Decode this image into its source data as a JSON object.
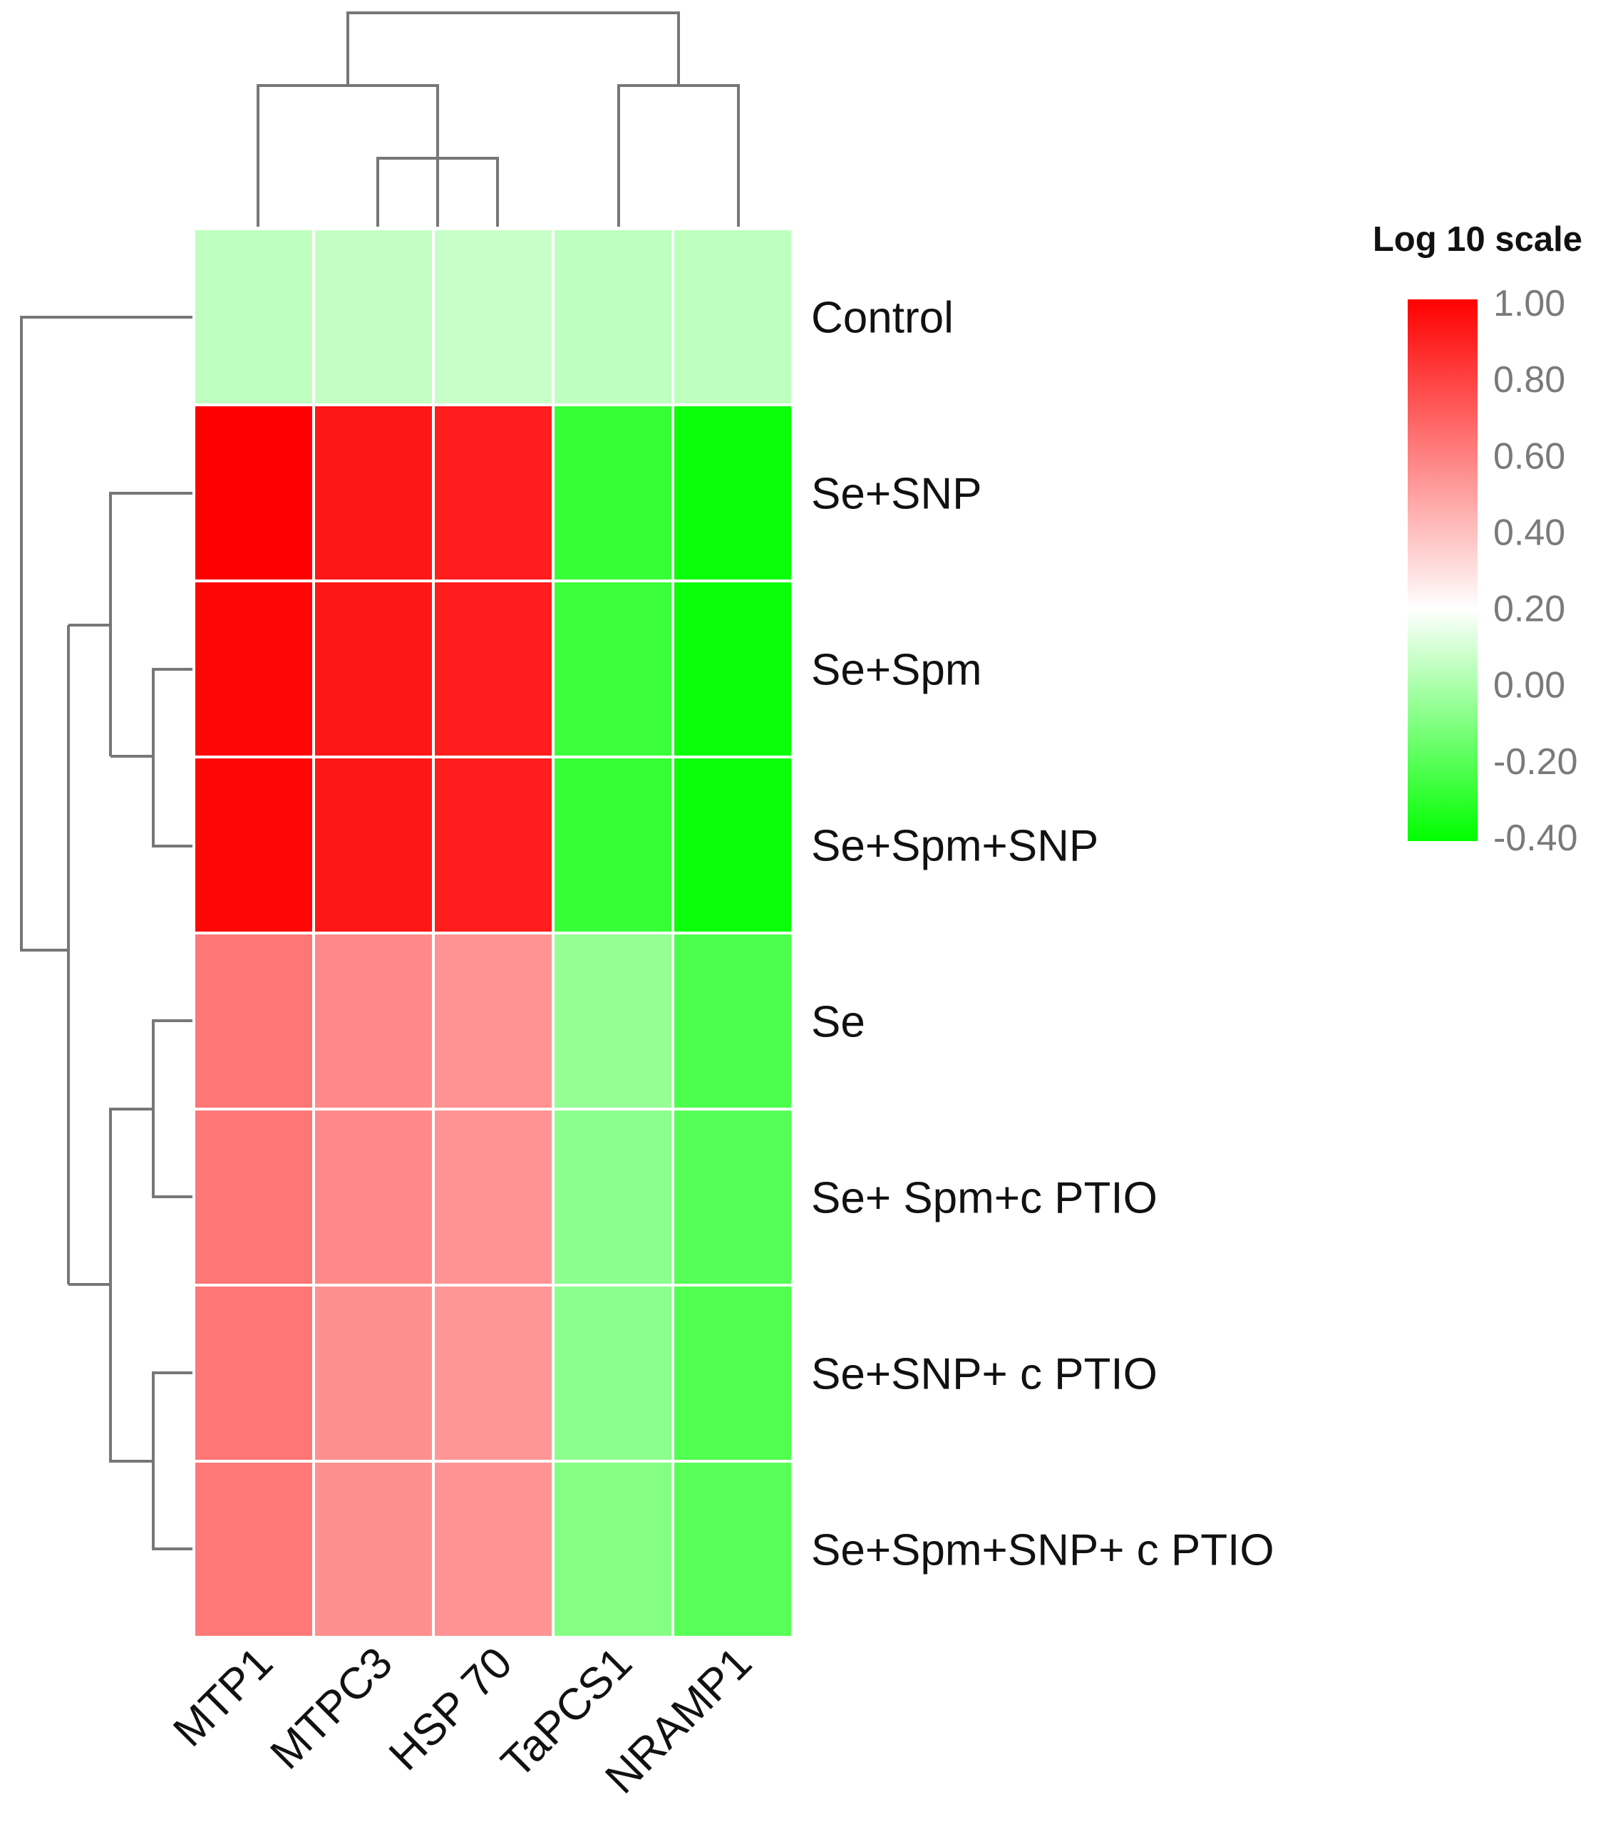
{
  "chart_data": {
    "type": "heatmap",
    "columns": [
      "MTP1",
      "MTPC3",
      "HSP 70",
      "TaPCS1",
      "NRAMP1"
    ],
    "rows": [
      "Control",
      "Se+SNP",
      "Se+Spm",
      "Se+Spm+SNP",
      "Se",
      "Se+ Spm+c PTIO",
      "Se+SNP+ c PTIO",
      "Se+Spm+SNP+ c PTIO"
    ],
    "values": [
      [
        0.05,
        0.06,
        0.07,
        0.05,
        0.05
      ],
      [
        1.0,
        0.93,
        0.91,
        -0.27,
        -0.38
      ],
      [
        0.98,
        0.93,
        0.91,
        -0.26,
        -0.38
      ],
      [
        0.98,
        0.93,
        0.91,
        -0.27,
        -0.38
      ],
      [
        0.63,
        0.57,
        0.54,
        -0.05,
        -0.22
      ],
      [
        0.63,
        0.57,
        0.54,
        -0.07,
        -0.2
      ],
      [
        0.63,
        0.55,
        0.53,
        -0.07,
        -0.21
      ],
      [
        0.62,
        0.55,
        0.54,
        -0.09,
        -0.19
      ]
    ],
    "color_scale": {
      "title": "Log 10 scale",
      "min": -0.4,
      "mid": 0.2,
      "max": 1.0,
      "low_color": "#00ff00",
      "mid_color": "#ffffff",
      "high_color": "#ff0000",
      "ticks": [
        "1.00",
        "0.80",
        "0.60",
        "0.40",
        "0.20",
        "0.00",
        "-0.20",
        "-0.40"
      ],
      "tick_values": [
        1.0,
        0.8,
        0.6,
        0.4,
        0.2,
        0.0,
        -0.2,
        -0.4
      ]
    },
    "column_dendrogram": "((MTP1,(MTPC3,HSP 70)),(TaPCS1,NRAMP1))",
    "row_dendrogram": "(Control,(((Se+SNP,(Se+Spm,Se+Spm+SNP)),((Se,Se+ Spm+c PTIO),(Se+SNP+ c PTIO,Se+Spm+SNP+ c PTIO)))))"
  }
}
